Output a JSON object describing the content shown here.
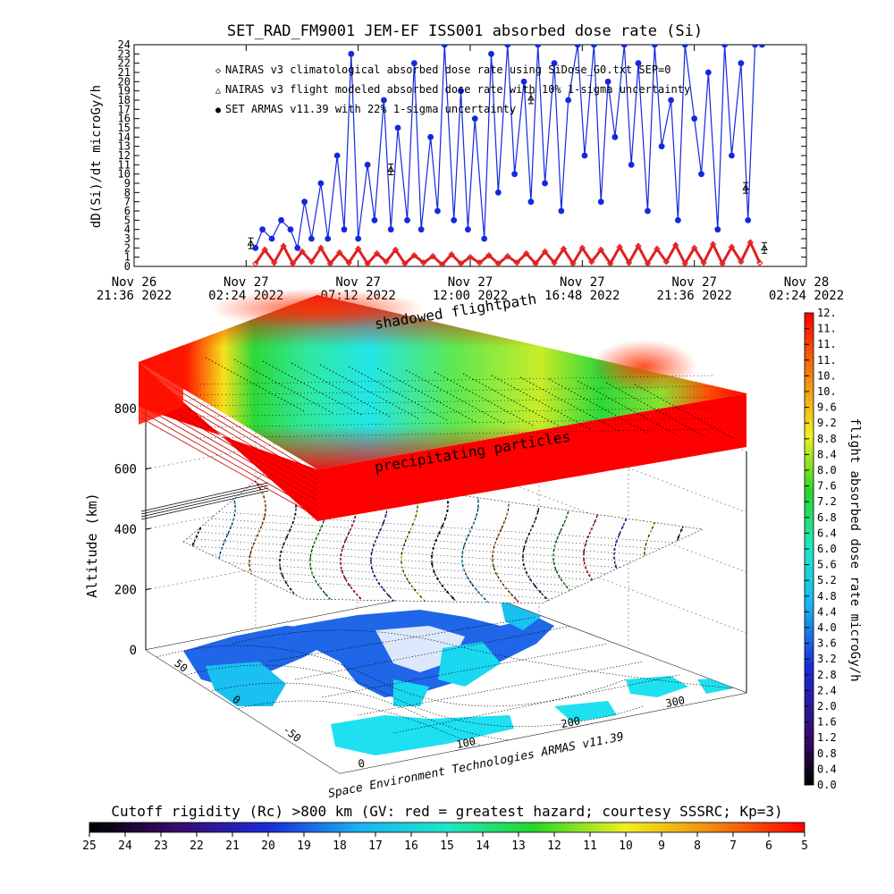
{
  "chart_data": [
    {
      "type": "line",
      "title": "SET_RAD_FM9001  JEM-EF ISS001 absorbed dose rate (Si)",
      "ylabel": "dD(Si)/dt microGy/h",
      "ylim": [
        0,
        24
      ],
      "yticks": [
        "0",
        "1",
        "2",
        "3",
        "4",
        "5",
        "6",
        "7",
        "8",
        "9",
        "10",
        "11",
        "12",
        "13",
        "14",
        "15",
        "16",
        "17",
        "18",
        "19",
        "20",
        "21",
        "22",
        "23",
        "24"
      ],
      "xticks": [
        {
          "line1": "Nov 26",
          "line2": "21:36 2022"
        },
        {
          "line1": "Nov 27",
          "line2": "02:24 2022"
        },
        {
          "line1": "Nov 27",
          "line2": "07:12 2022"
        },
        {
          "line1": "Nov 27",
          "line2": "12:00 2022"
        },
        {
          "line1": "Nov 27",
          "line2": "16:48 2022"
        },
        {
          "line1": "Nov 27",
          "line2": "21:36 2022"
        },
        {
          "line1": "Nov 28",
          "line2": "02:24 2022"
        }
      ],
      "xrange_hours": [
        0,
        28.8
      ],
      "legend": [
        {
          "marker": "◇",
          "color": "#e02020",
          "label": "NAIRAS v3 climatological absorbed dose rate using SiDose_G0.txt SEP=0"
        },
        {
          "marker": "△",
          "color": "#000000",
          "label": "NAIRAS v3 flight modeled absorbed dose rate with 10% 1-sigma uncertainty"
        },
        {
          "marker": "●",
          "color": "#1428e0",
          "label": "SET ARMAS v11.39 with 22% 1-sigma uncertainty"
        }
      ],
      "series": [
        {
          "name": "SET ARMAS v11.39 with 22% 1-sigma uncertainty",
          "color": "#1428e0",
          "x": [
            5.2,
            5.5,
            5.9,
            6.3,
            6.7,
            7.0,
            7.3,
            7.6,
            8.0,
            8.3,
            8.7,
            9.0,
            9.3,
            9.6,
            10.0,
            10.3,
            10.7,
            11.0,
            11.3,
            11.7,
            12.0,
            12.3,
            12.7,
            13.0,
            13.3,
            13.7,
            14.0,
            14.3,
            14.6,
            15.0,
            15.3,
            15.6,
            16.0,
            16.3,
            16.7,
            17.0,
            17.3,
            17.6,
            18.0,
            18.3,
            18.6,
            19.0,
            19.3,
            19.7,
            20.0,
            20.3,
            20.6,
            21.0,
            21.3,
            21.6,
            22.0,
            22.3,
            22.6,
            23.0,
            23.3,
            23.6,
            24.0,
            24.3,
            24.6,
            25.0,
            25.3,
            25.6,
            26.0,
            26.3,
            26.6,
            26.9
          ],
          "y": [
            2,
            4,
            3,
            5,
            4,
            2,
            7,
            3,
            9,
            3,
            12,
            4,
            23,
            3,
            11,
            5,
            18,
            4,
            15,
            5,
            22,
            4,
            14,
            6,
            24,
            5,
            19,
            4,
            16,
            3,
            23,
            8,
            24,
            10,
            20,
            7,
            24,
            9,
            22,
            6,
            18,
            24,
            12,
            24,
            7,
            20,
            14,
            24,
            11,
            22,
            6,
            24,
            13,
            18,
            5,
            24,
            16,
            10,
            21,
            4,
            24,
            12,
            22,
            5,
            24,
            24
          ]
        },
        {
          "name": "NAIRAS v3 climatological absorbed dose rate using SiDose_G0.txt SEP=0",
          "color": "#e02020",
          "x": [
            5.2,
            5.6,
            6.0,
            6.4,
            6.8,
            7.2,
            7.6,
            8.0,
            8.4,
            8.8,
            9.2,
            9.6,
            10.0,
            10.4,
            10.8,
            11.2,
            11.6,
            12.0,
            12.4,
            12.8,
            13.2,
            13.6,
            14.0,
            14.4,
            14.8,
            15.2,
            15.6,
            16.0,
            16.4,
            16.8,
            17.2,
            17.6,
            18.0,
            18.4,
            18.8,
            19.2,
            19.6,
            20.0,
            20.4,
            20.8,
            21.2,
            21.6,
            22.0,
            22.4,
            22.8,
            23.2,
            23.6,
            24.0,
            24.4,
            24.8,
            25.2,
            25.6,
            26.0,
            26.4,
            26.8
          ],
          "y": [
            0.3,
            1.8,
            0.4,
            2.2,
            0.3,
            1.6,
            0.5,
            2.0,
            0.3,
            1.5,
            0.4,
            1.9,
            0.3,
            1.4,
            0.5,
            1.8,
            0.3,
            1.2,
            0.4,
            1.1,
            0.2,
            1.3,
            0.3,
            1.0,
            0.4,
            1.2,
            0.3,
            1.1,
            0.4,
            1.4,
            0.3,
            1.6,
            0.4,
            1.9,
            0.3,
            2.0,
            0.5,
            1.8,
            0.3,
            2.1,
            0.4,
            2.2,
            0.3,
            1.9,
            0.5,
            2.3,
            0.3,
            2.0,
            0.4,
            2.4,
            0.3,
            2.1,
            0.5,
            2.6,
            0.4
          ]
        },
        {
          "name": "NAIRAS v3 flight modeled absorbed dose rate with 10% 1-sigma uncertainty",
          "color": "#000000",
          "x": [
            5.0,
            11.0,
            17.0,
            26.2,
            27.0
          ],
          "y": [
            2.5,
            10.5,
            18.2,
            8.5,
            2.0
          ]
        }
      ]
    },
    {
      "type": "scatter3d",
      "zlabel": "Altitude (km)",
      "zticks": [
        "0",
        "200",
        "400",
        "600",
        "800"
      ],
      "xticks": [
        "0",
        "100",
        "200",
        "300"
      ],
      "yticks": [
        "50",
        "0",
        "-50"
      ],
      "annotations": [
        "shadowed flightpath",
        "precipitating particles"
      ],
      "credit": "Space Environment Technologies ARMAS v11.39",
      "colorbar": {
        "label": "flight absorbed dose rate microGy/h",
        "ticks": [
          "0.0",
          "0.4",
          "0.8",
          "1.2",
          "1.6",
          "2.0",
          "2.4",
          "2.8",
          "3.2",
          "3.6",
          "4.0",
          "4.4",
          "4.8",
          "5.2",
          "5.6",
          "6.0",
          "6.4",
          "6.8",
          "7.2",
          "7.6",
          "8.0",
          "8.4",
          "8.8",
          "9.2",
          "9.6",
          "10.",
          "10.",
          "11.",
          "11.",
          "11.",
          "12."
        ],
        "range": [
          0,
          12
        ]
      }
    },
    {
      "type": "colorbar",
      "title": "Cutoff rigidity (Rc) >800 km (GV: red = greatest hazard; courtesy SSSRC; Kp=3)",
      "ticks": [
        "25",
        "24",
        "23",
        "22",
        "21",
        "20",
        "19",
        "18",
        "17",
        "16",
        "15",
        "14",
        "13",
        "12",
        "11",
        "10",
        "9",
        "8",
        "7",
        "6",
        "5"
      ],
      "range": [
        25,
        5
      ]
    }
  ]
}
